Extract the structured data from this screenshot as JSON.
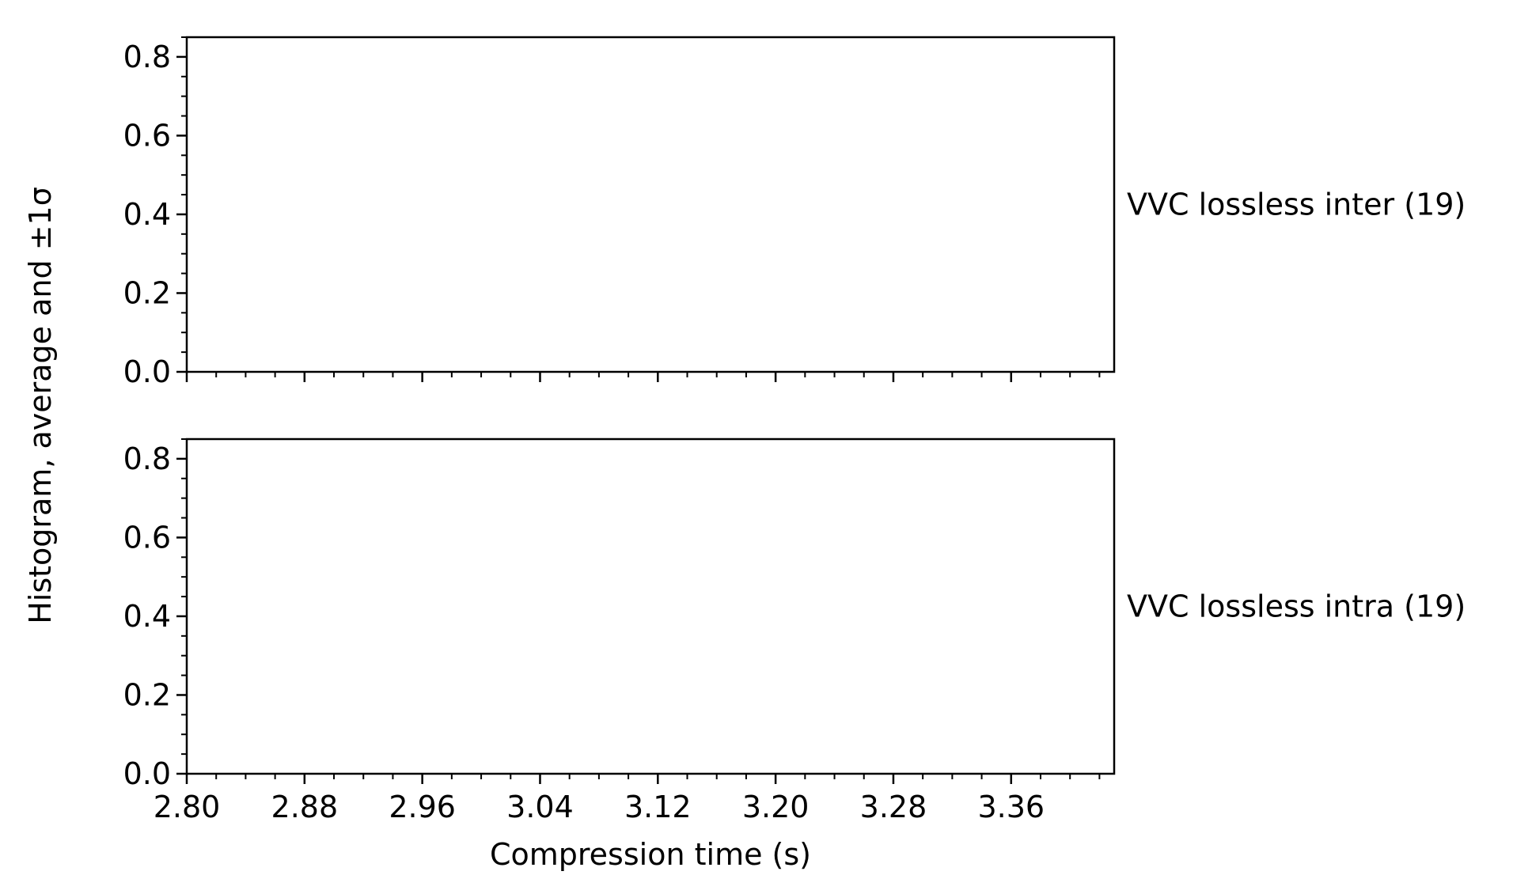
{
  "chart_data": {
    "type": "bar",
    "title": "",
    "xlabel": "Compression time (s)",
    "ylabel": "Histogram, average and ±1σ",
    "xlim": [
      2.8,
      3.43
    ],
    "x_ticks": [
      "2.80",
      "2.88",
      "2.96",
      "3.04",
      "3.12",
      "3.20",
      "3.28",
      "3.36"
    ],
    "x_tick_values": [
      2.8,
      2.88,
      2.96,
      3.04,
      3.12,
      3.2,
      3.28,
      3.36
    ],
    "x_minor_step": 0.02,
    "shared_x": true,
    "grid": false,
    "panels": [
      {
        "label": "VVC lossless inter (19)",
        "ylim": [
          0,
          0.85
        ],
        "y_ticks": [
          "0.0",
          "0.2",
          "0.4",
          "0.6",
          "0.8"
        ],
        "y_tick_values": [
          0,
          0.2,
          0.4,
          0.6,
          0.8
        ],
        "y_minor_step": 0.05,
        "series": []
      },
      {
        "label": "VVC lossless intra (19)",
        "ylim": [
          0,
          0.85
        ],
        "y_ticks": [
          "0.0",
          "0.2",
          "0.4",
          "0.6",
          "0.8"
        ],
        "y_tick_values": [
          0,
          0.2,
          0.4,
          0.6,
          0.8
        ],
        "y_minor_step": 0.05,
        "series": []
      }
    ]
  }
}
